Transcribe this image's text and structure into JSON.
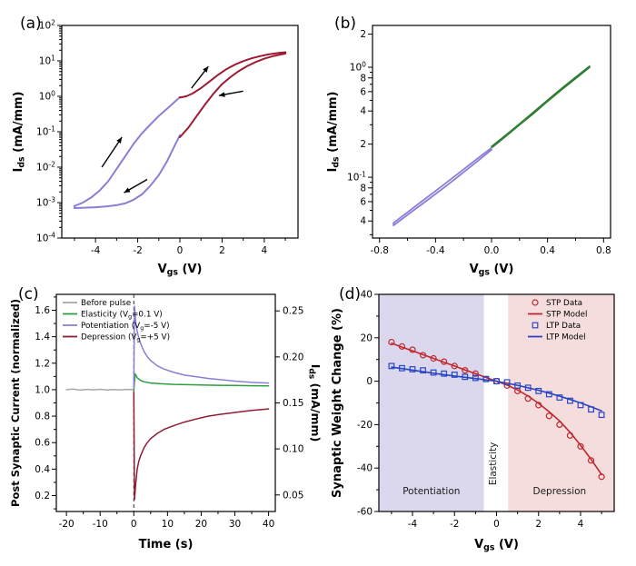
{
  "chart_data": [
    {
      "id": "a",
      "panel_label": "(a)",
      "type": "line",
      "xlabel": "V_{gs} (V)",
      "ylabel": "I_{ds} (mA/mm)",
      "xlim": [
        -5.6,
        5.6
      ],
      "xticks": [
        {
          "v": -4,
          "l": "-4"
        },
        {
          "v": -2,
          "l": "-2"
        },
        {
          "v": 0,
          "l": "0"
        },
        {
          "v": 2,
          "l": "2"
        },
        {
          "v": 4,
          "l": "4"
        }
      ],
      "xminor": 1,
      "yscale": "log",
      "ylim": [
        0.0001,
        100
      ],
      "yticks": [
        {
          "v": 0.0001,
          "l": "10^{-4}"
        },
        {
          "v": 0.001,
          "l": "10^{-3}"
        },
        {
          "v": 0.01,
          "l": "10^{-2}"
        },
        {
          "v": 0.1,
          "l": "10^{-1}"
        },
        {
          "v": 1,
          "l": "10^{0}"
        },
        {
          "v": 10,
          "l": "10^{1}"
        },
        {
          "v": 100,
          "l": "10^{2}"
        }
      ],
      "yminor": "log-auto",
      "series": [
        {
          "name": "negative-sweep-loop",
          "color": "#8a7fd6",
          "width": 2,
          "type": "line",
          "x": [
            0,
            -0.3,
            -0.6,
            -1.0,
            -1.4,
            -1.8,
            -2.2,
            -2.6,
            -3.0,
            -3.5,
            -4.0,
            -4.5,
            -5.0,
            -5.0,
            -4.6,
            -4.2,
            -3.8,
            -3.4,
            -3.0,
            -2.6,
            -2.2,
            -1.8,
            -1.4,
            -1.0,
            -0.6,
            -0.3,
            0
          ],
          "y": [
            0.08,
            0.035,
            0.015,
            0.006,
            0.003,
            0.0017,
            0.0012,
            0.00095,
            0.00085,
            0.00078,
            0.00074,
            0.00072,
            0.0007,
            0.0008,
            0.001,
            0.0014,
            0.0022,
            0.004,
            0.009,
            0.02,
            0.045,
            0.09,
            0.16,
            0.28,
            0.45,
            0.65,
            0.95
          ]
        },
        {
          "name": "positive-sweep-loop",
          "color": "#9e1b32",
          "width": 2,
          "type": "line",
          "x": [
            0,
            0.4,
            0.8,
            1.2,
            1.6,
            2.0,
            2.4,
            2.8,
            3.2,
            3.6,
            4.0,
            4.4,
            4.8,
            5.0,
            5.0,
            4.6,
            4.2,
            3.8,
            3.4,
            3.0,
            2.6,
            2.2,
            1.8,
            1.4,
            1.0,
            0.6,
            0.3,
            0
          ],
          "y": [
            0.07,
            0.13,
            0.28,
            0.6,
            1.2,
            2.2,
            3.5,
            5.2,
            7.2,
            9.3,
            11.5,
            13.5,
            15.2,
            16,
            17.5,
            16.5,
            15.2,
            13.6,
            11.8,
            9.8,
            7.8,
            5.8,
            4.0,
            2.6,
            1.7,
            1.2,
            1.0,
            0.92
          ]
        }
      ],
      "arrows": [
        {
          "x1": -3.7,
          "y1": 0.01,
          "x2": -2.75,
          "y2": 0.07
        },
        {
          "x1": -1.55,
          "y1": 0.0045,
          "x2": -2.65,
          "y2": 0.0019
        },
        {
          "x1": 0.55,
          "y1": 1.7,
          "x2": 1.35,
          "y2": 7.0
        },
        {
          "x1": 3.0,
          "y1": 1.4,
          "x2": 1.85,
          "y2": 1.05
        }
      ]
    },
    {
      "id": "b",
      "panel_label": "(b)",
      "type": "line",
      "xlabel": "V_{gs} (V)",
      "ylabel": "I_{ds} (mA/mm)",
      "xlim": [
        -0.85,
        0.85
      ],
      "xticks": [
        {
          "v": -0.8,
          "l": "-0.8"
        },
        {
          "v": -0.4,
          "l": "-0.4"
        },
        {
          "v": 0,
          "l": "0.0"
        },
        {
          "v": 0.4,
          "l": "0.4"
        },
        {
          "v": 0.8,
          "l": "0.8"
        }
      ],
      "xminor": 0.2,
      "yscale": "log",
      "ylim": [
        0.028,
        2.4
      ],
      "yticks": [
        {
          "v": 2,
          "l": "2"
        },
        {
          "v": 1,
          "l": "10^{0}"
        },
        {
          "v": 0.8,
          "l": "8"
        },
        {
          "v": 0.6,
          "l": "6"
        },
        {
          "v": 0.4,
          "l": "4"
        },
        {
          "v": 0.2,
          "l": "2"
        },
        {
          "v": 0.1,
          "l": "10^{-1}"
        },
        {
          "v": 0.08,
          "l": "8"
        },
        {
          "v": 0.06,
          "l": "6"
        },
        {
          "v": 0.04,
          "l": "4"
        }
      ],
      "yminor": "log-auto",
      "series": [
        {
          "name": "positive-branch",
          "color": "#2e7d33",
          "width": 1.8,
          "type": "line",
          "x": [
            0,
            0.1,
            0.2,
            0.3,
            0.4,
            0.5,
            0.6,
            0.7,
            0.7,
            0.6,
            0.5,
            0.4,
            0.3,
            0.2,
            0.1,
            0
          ],
          "y": [
            0.19,
            0.24,
            0.305,
            0.39,
            0.5,
            0.64,
            0.81,
            1.02,
            1.0,
            0.79,
            0.625,
            0.49,
            0.38,
            0.3,
            0.235,
            0.185
          ]
        },
        {
          "name": "negative-branch",
          "color": "#8a7fd6",
          "width": 1.8,
          "type": "line",
          "x": [
            0,
            -0.1,
            -0.2,
            -0.3,
            -0.4,
            -0.5,
            -0.6,
            -0.7,
            -0.7,
            -0.6,
            -0.5,
            -0.4,
            -0.3,
            -0.2,
            -0.1,
            0
          ],
          "y": [
            0.185,
            0.148,
            0.118,
            0.094,
            0.075,
            0.06,
            0.048,
            0.0385,
            0.0365,
            0.0455,
            0.0565,
            0.0705,
            0.088,
            0.111,
            0.14,
            0.178
          ]
        }
      ]
    },
    {
      "id": "c",
      "panel_label": "(c)",
      "type": "line",
      "xlabel": "Time (s)",
      "ylabel": "Post Synaptic Current (normalized)",
      "ylabel_right": "I_{ds} (mA/mm)",
      "xlim": [
        -23,
        42
      ],
      "xticks": [
        {
          "v": -20,
          "l": "-20"
        },
        {
          "v": -10,
          "l": "-10"
        },
        {
          "v": 0,
          "l": "0"
        },
        {
          "v": 10,
          "l": "10"
        },
        {
          "v": 20,
          "l": "20"
        },
        {
          "v": 30,
          "l": "30"
        },
        {
          "v": 40,
          "l": "40"
        }
      ],
      "xminor": 5,
      "yscale": "linear",
      "ylim": [
        0.08,
        1.72
      ],
      "yticks": [
        {
          "v": 0.2,
          "l": "0.2"
        },
        {
          "v": 0.4,
          "l": "0.4"
        },
        {
          "v": 0.6,
          "l": "0.6"
        },
        {
          "v": 0.8,
          "l": "0.8"
        },
        {
          "v": 1.0,
          "l": "1.0"
        },
        {
          "v": 1.2,
          "l": "1.2"
        },
        {
          "v": 1.4,
          "l": "1.4"
        },
        {
          "v": 1.6,
          "l": "1.6"
        }
      ],
      "yminor": 0.1,
      "ylim_right": [
        0.032,
        0.268
      ],
      "yticks_right": [
        {
          "v": 0.05,
          "l": "0.05"
        },
        {
          "v": 0.1,
          "l": "0.10"
        },
        {
          "v": 0.15,
          "l": "0.15"
        },
        {
          "v": 0.2,
          "l": "0.20"
        },
        {
          "v": 0.25,
          "l": "0.25"
        }
      ],
      "vlines": [
        {
          "x": 0
        }
      ],
      "series": [
        {
          "name": "before-pulse",
          "color": "#a8a8a8",
          "width": 1.5,
          "type": "line",
          "x": [
            -20,
            -18,
            -16,
            -14,
            -12,
            -10,
            -8,
            -6,
            -4,
            -2,
            -0.2
          ],
          "y": [
            1.0,
            1.004,
            0.997,
            1.002,
            0.999,
            1.003,
            0.998,
            1.001,
            0.999,
            1.002,
            1.0
          ]
        },
        {
          "name": "elasticity",
          "color": "#2f9e41",
          "width": 1.5,
          "type": "line",
          "x": [
            0,
            0.4,
            1,
            2,
            3,
            5,
            8,
            12,
            16,
            20,
            25,
            30,
            35,
            40
          ],
          "y": [
            1.0,
            1.12,
            1.09,
            1.07,
            1.06,
            1.05,
            1.045,
            1.04,
            1.038,
            1.035,
            1.033,
            1.032,
            1.03,
            1.028
          ]
        },
        {
          "name": "potentiation",
          "color": "#8a7fd6",
          "width": 1.5,
          "type": "line",
          "x": [
            0,
            0.2,
            0.6,
            1,
            1.5,
            2,
            3,
            4,
            5,
            7,
            9,
            12,
            15,
            18,
            22,
            26,
            30,
            35,
            40
          ],
          "y": [
            1.02,
            1.63,
            1.5,
            1.44,
            1.39,
            1.35,
            1.29,
            1.25,
            1.22,
            1.18,
            1.155,
            1.13,
            1.11,
            1.1,
            1.085,
            1.075,
            1.065,
            1.055,
            1.05
          ]
        },
        {
          "name": "depression",
          "color": "#8e1d32",
          "width": 1.5,
          "type": "line",
          "x": [
            0,
            0.2,
            0.6,
            1,
            1.5,
            2,
            3,
            4,
            5,
            7,
            9,
            12,
            15,
            18,
            22,
            26,
            30,
            35,
            40
          ],
          "y": [
            0.98,
            0.17,
            0.3,
            0.4,
            0.46,
            0.5,
            0.56,
            0.6,
            0.63,
            0.67,
            0.7,
            0.73,
            0.755,
            0.775,
            0.8,
            0.815,
            0.828,
            0.843,
            0.855
          ]
        }
      ],
      "legend": {
        "pos": "top-left",
        "entries": [
          {
            "label": "Before pulse",
            "color": "#a8a8a8",
            "marker": "line"
          },
          {
            "label": "Elasticity (V_{g}=0.1 V)",
            "color": "#2f9e41",
            "marker": "line"
          },
          {
            "label": "Potentiation (V_{g}=-5 V)",
            "color": "#8a7fd6",
            "marker": "line"
          },
          {
            "label": "Depression (V_{g}=+5 V)",
            "color": "#8e1d32",
            "marker": "line"
          }
        ]
      }
    },
    {
      "id": "d",
      "panel_label": "(d)",
      "type": "scatter",
      "xlabel": "V_{gs} (V)",
      "ylabel": "Synaptic Weight Change (%)",
      "xlim": [
        -5.6,
        5.6
      ],
      "xticks": [
        {
          "v": -4,
          "l": "-4"
        },
        {
          "v": -2,
          "l": "-2"
        },
        {
          "v": 0,
          "l": "0"
        },
        {
          "v": 2,
          "l": "2"
        },
        {
          "v": 4,
          "l": "4"
        }
      ],
      "xminor": 1,
      "yscale": "linear",
      "ylim": [
        -60,
        40
      ],
      "yticks": [
        {
          "v": -60,
          "l": "-60"
        },
        {
          "v": -40,
          "l": "-40"
        },
        {
          "v": -20,
          "l": "-20"
        },
        {
          "v": 0,
          "l": "0"
        },
        {
          "v": 20,
          "l": "20"
        },
        {
          "v": 40,
          "l": "40"
        }
      ],
      "yminor": 10,
      "regions": [
        {
          "x1": -5.6,
          "x2": -0.6,
          "color": "#dbd8ee",
          "label": "Potentiation",
          "label_x": -3.1,
          "label_y": -52,
          "rotate": 0
        },
        {
          "x1": -0.6,
          "x2": 0.55,
          "color": "#ffffff",
          "label": "Elasticity",
          "label_x": -0.03,
          "label_y": -38,
          "rotate": -90
        },
        {
          "x1": 0.55,
          "x2": 5.6,
          "color": "#f5dddd",
          "label": "Depression",
          "label_x": 3.0,
          "label_y": -52,
          "rotate": 0
        }
      ],
      "series": [
        {
          "name": "stp-model",
          "color": "#c0272d",
          "width": 1.6,
          "type": "line",
          "x": [
            -5,
            -4.5,
            -4,
            -3.5,
            -3,
            -2.5,
            -2,
            -1.5,
            -1,
            -0.5,
            0,
            0.5,
            1,
            1.5,
            2,
            2.5,
            3,
            3.5,
            4,
            4.5,
            5
          ],
          "y": [
            17.5,
            15.7,
            14,
            12.2,
            10.5,
            8.7,
            7,
            5.2,
            3.5,
            1.7,
            0,
            -1.8,
            -4,
            -6.8,
            -10.2,
            -14,
            -18.3,
            -23.5,
            -29.5,
            -36,
            -43
          ]
        },
        {
          "name": "ltp-model",
          "color": "#2846c4",
          "width": 1.6,
          "type": "line",
          "x": [
            -5,
            -4.5,
            -4,
            -3.5,
            -3,
            -2.5,
            -2,
            -1.5,
            -1,
            -0.5,
            0,
            0.5,
            1,
            1.5,
            2,
            2.5,
            3,
            3.5,
            4,
            4.5,
            5
          ],
          "y": [
            6.5,
            5.8,
            5.1,
            4.4,
            3.7,
            3.0,
            2.4,
            1.8,
            1.2,
            0.6,
            0,
            -0.9,
            -1.9,
            -3.0,
            -4.2,
            -5.5,
            -6.9,
            -8.4,
            -10,
            -11.8,
            -13.7
          ]
        },
        {
          "name": "stp-data",
          "color": "#c0272d",
          "type": "scatter",
          "marker": "circle",
          "x": [
            -5,
            -4.5,
            -4,
            -3.5,
            -3,
            -2.5,
            -2,
            -1.5,
            -1,
            -0.5,
            0,
            0.5,
            1,
            1.5,
            2,
            2.5,
            3,
            3.5,
            4,
            4.5,
            5
          ],
          "y": [
            18,
            16,
            14.5,
            12,
            10.5,
            9,
            7,
            5,
            3.5,
            1,
            0,
            -2,
            -4.5,
            -8,
            -11,
            -16,
            -20,
            -25,
            -30,
            -36.5,
            -44
          ]
        },
        {
          "name": "ltp-data",
          "color": "#2846c4",
          "type": "scatter",
          "marker": "square",
          "x": [
            -5,
            -4.5,
            -4,
            -3.5,
            -3,
            -2.5,
            -2,
            -1.5,
            -1,
            -0.5,
            0,
            0.5,
            1,
            1.5,
            2,
            2.5,
            3,
            3.5,
            4,
            4.5,
            5
          ],
          "y": [
            7,
            6,
            5.5,
            5,
            4,
            3.5,
            3,
            2,
            1.5,
            1,
            0,
            -0.5,
            -2,
            -3,
            -4.5,
            -6,
            -7.5,
            -9,
            -11,
            -13,
            -15.5
          ]
        }
      ],
      "legend": {
        "pos": "top-right",
        "width": 95,
        "entries": [
          {
            "label": "STP Data",
            "color": "#c0272d",
            "marker": "circle"
          },
          {
            "label": "STP Model",
            "color": "#c0272d",
            "marker": "line"
          },
          {
            "label": "LTP Data",
            "color": "#2846c4",
            "marker": "square"
          },
          {
            "label": "LTP Model",
            "color": "#2846c4",
            "marker": "line"
          }
        ]
      }
    }
  ]
}
